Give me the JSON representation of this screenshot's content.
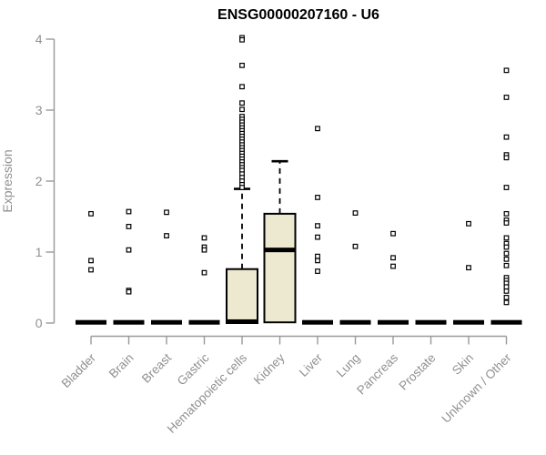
{
  "chart_data": {
    "type": "boxplot",
    "title": "ENSG00000207160 - U6",
    "ylabel": "Expression",
    "xlabel": "",
    "ylim": [
      0,
      4
    ],
    "yticks": [
      0,
      1,
      2,
      3,
      4
    ],
    "grid": false,
    "legend": "none",
    "categories": [
      "Bladder",
      "Brain",
      "Breast",
      "Gastric",
      "Hematopoietic cells",
      "Kidney",
      "Liver",
      "Lung",
      "Pancreas",
      "Prostate",
      "Skin",
      "Unknown / Other"
    ],
    "boxes": [
      {
        "category": "Bladder",
        "q1": 0,
        "median": 0.01,
        "q3": 0.02,
        "whisker_low": 0,
        "whisker_high": 0.02,
        "outliers": [
          1.54,
          0.88,
          0.75
        ]
      },
      {
        "category": "Brain",
        "q1": 0,
        "median": 0.01,
        "q3": 0.02,
        "whisker_low": 0,
        "whisker_high": 0.02,
        "outliers": [
          1.57,
          1.36,
          1.03,
          0.46,
          0.44
        ]
      },
      {
        "category": "Breast",
        "q1": 0,
        "median": 0.01,
        "q3": 0.02,
        "whisker_low": 0,
        "whisker_high": 0.02,
        "outliers": [
          1.56,
          1.23
        ]
      },
      {
        "category": "Gastric",
        "q1": 0,
        "median": 0.01,
        "q3": 0.02,
        "whisker_low": 0,
        "whisker_high": 0.02,
        "outliers": [
          1.2,
          1.07,
          1.03,
          0.71
        ]
      },
      {
        "category": "Hematopoietic cells",
        "q1": 0,
        "median": 0.02,
        "q3": 0.76,
        "whisker_low": 0,
        "whisker_high": 1.89,
        "outliers": [
          4.02,
          3.99,
          3.63,
          3.33,
          3.1,
          3.01,
          2.91,
          2.87,
          2.83,
          2.79,
          2.75,
          2.71,
          2.67,
          2.63,
          2.59,
          2.55,
          2.51,
          2.47,
          2.43,
          2.39,
          2.35,
          2.31,
          2.27,
          2.23,
          2.19,
          2.15,
          2.1,
          2.05,
          2.0,
          1.95,
          1.91
        ]
      },
      {
        "category": "Kidney",
        "q1": 0.01,
        "median": 1.03,
        "q3": 1.54,
        "whisker_low": 0,
        "whisker_high": 2.28,
        "outliers": []
      },
      {
        "category": "Liver",
        "q1": 0,
        "median": 0.01,
        "q3": 0.02,
        "whisker_low": 0,
        "whisker_high": 0.02,
        "outliers": [
          2.74,
          1.77,
          1.37,
          1.21,
          0.94,
          0.88,
          0.73
        ]
      },
      {
        "category": "Lung",
        "q1": 0,
        "median": 0.01,
        "q3": 0.02,
        "whisker_low": 0,
        "whisker_high": 0.02,
        "outliers": [
          1.55,
          1.08
        ]
      },
      {
        "category": "Pancreas",
        "q1": 0,
        "median": 0.01,
        "q3": 0.02,
        "whisker_low": 0,
        "whisker_high": 0.02,
        "outliers": [
          1.26,
          0.92,
          0.8
        ]
      },
      {
        "category": "Prostate",
        "q1": 0,
        "median": 0.01,
        "q3": 0.02,
        "whisker_low": 0,
        "whisker_high": 0.02,
        "outliers": []
      },
      {
        "category": "Skin",
        "q1": 0,
        "median": 0.01,
        "q3": 0.02,
        "whisker_low": 0,
        "whisker_high": 0.02,
        "outliers": [
          1.4,
          0.78
        ]
      },
      {
        "category": "Unknown / Other",
        "q1": 0,
        "median": 0.01,
        "q3": 0.02,
        "whisker_low": 0,
        "whisker_high": 0.02,
        "outliers": [
          3.56,
          3.18,
          2.62,
          2.37,
          2.33,
          1.91,
          1.54,
          1.45,
          1.41,
          1.2,
          1.12,
          1.07,
          0.98,
          0.9,
          0.81,
          0.64,
          0.6,
          0.56,
          0.51,
          0.45,
          0.36,
          0.29
        ]
      }
    ],
    "colors": {
      "box_fill": "#EDE8D0",
      "box_stroke": "#000000",
      "median": "#000000",
      "whisker": "#000000",
      "outlier_stroke": "#000000",
      "outlier_fill": "#FFFFFF",
      "axis": "#999999",
      "tick_label": "#909090",
      "title": "#000000",
      "background": "#FFFFFF"
    }
  }
}
